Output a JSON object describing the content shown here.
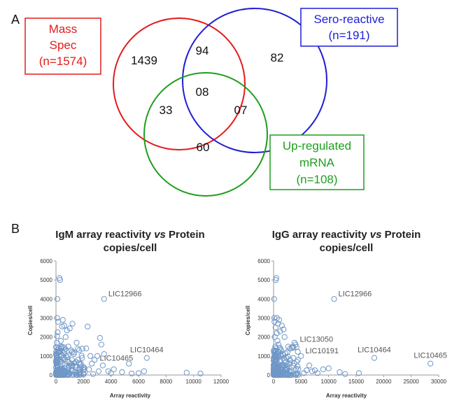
{
  "panel_a": {
    "label": "A",
    "sets": [
      {
        "name_lines": [
          "Mass",
          "Spec",
          "(n=1574)"
        ],
        "color": "#e31b1b"
      },
      {
        "name_lines": [
          "Sero-reactive",
          "(n=191)"
        ],
        "color": "#1f1fd6"
      },
      {
        "name_lines": [
          "Up-regulated",
          "mRNA",
          "(n=108)"
        ],
        "color": "#1f9e1f"
      }
    ],
    "regions": {
      "mass_only": "1439",
      "mass_sero": "94",
      "sero_only": "82",
      "all_three": "08",
      "mass_mrna": "33",
      "sero_mrna": "07",
      "mrna_only": "60"
    }
  },
  "panel_b": {
    "label": "B",
    "charts": [
      {
        "title_parts": [
          "IgM array reactivity ",
          "vs",
          " Protein"
        ],
        "title_line2": "copies/cell",
        "xlabel": "Array reactivity",
        "ylabel": "Copies/cell",
        "x_ticks": [
          "0",
          "2000",
          "4000",
          "6000",
          "8000",
          "10000",
          "12000"
        ],
        "y_ticks": [
          "0",
          "1000",
          "2000",
          "3000",
          "4000",
          "5000",
          "6000"
        ],
        "annotations": [
          "LIC12966",
          "LIC10464",
          "LIC10465"
        ]
      },
      {
        "title_parts": [
          "IgG array reactivity ",
          "vs",
          " Protein"
        ],
        "title_line2": "copies/cell",
        "xlabel": "Array reactivity",
        "ylabel": "Copies/cell",
        "x_ticks": [
          "0",
          "5000",
          "10000",
          "15000",
          "20000",
          "25000",
          "30000"
        ],
        "y_ticks": [
          "0",
          "1000",
          "2000",
          "3000",
          "4000",
          "5000",
          "6000"
        ],
        "annotations": [
          "LIC12966",
          "LIC13050",
          "LIC10191",
          "LIC10464",
          "LIC10465"
        ]
      }
    ]
  },
  "chart_data": [
    {
      "type": "scatter",
      "title": "IgM array reactivity vs Protein copies/cell",
      "xlabel": "Array reactivity",
      "ylabel": "Copies/cell",
      "xlim": [
        0,
        12000
      ],
      "ylim": [
        0,
        6000
      ],
      "marker_color": "#6f97c7",
      "points": [
        [
          3500,
          4000
        ],
        [
          6600,
          900
        ],
        [
          5300,
          600
        ],
        [
          9500,
          120
        ],
        [
          10500,
          80
        ],
        [
          6400,
          200
        ],
        [
          6000,
          100
        ],
        [
          5500,
          80
        ],
        [
          4800,
          150
        ],
        [
          4200,
          300
        ],
        [
          3200,
          1950
        ],
        [
          3300,
          1600
        ],
        [
          2300,
          2550
        ],
        [
          2200,
          1400
        ],
        [
          3500,
          1100
        ],
        [
          3000,
          1000
        ],
        [
          2800,
          800
        ],
        [
          2600,
          600
        ],
        [
          2400,
          300
        ],
        [
          3800,
          200
        ],
        [
          4000,
          100
        ],
        [
          3400,
          500
        ],
        [
          2500,
          1000
        ],
        [
          1900,
          900
        ],
        [
          1500,
          1700
        ],
        [
          1200,
          2700
        ],
        [
          1000,
          2450
        ],
        [
          800,
          2350
        ],
        [
          600,
          2600
        ],
        [
          500,
          2900
        ],
        [
          300,
          5000
        ],
        [
          250,
          5100
        ],
        [
          100,
          4000
        ],
        [
          80,
          2050
        ],
        [
          120,
          2250
        ],
        [
          450,
          2550
        ],
        [
          150,
          2800
        ],
        [
          700,
          2000
        ],
        [
          900,
          1500
        ],
        [
          1100,
          1300
        ],
        [
          1300,
          1100
        ],
        [
          1600,
          800
        ],
        [
          1800,
          600
        ],
        [
          2000,
          400
        ],
        [
          400,
          1500
        ],
        [
          200,
          1200
        ],
        [
          600,
          1300
        ],
        [
          350,
          1800
        ],
        [
          750,
          1000
        ],
        [
          1400,
          500
        ],
        [
          1700,
          250
        ],
        [
          2100,
          150
        ],
        [
          2700,
          50
        ],
        [
          3100,
          200
        ],
        [
          850,
          700
        ],
        [
          950,
          400
        ],
        [
          650,
          600
        ],
        [
          500,
          900
        ],
        [
          250,
          700
        ],
        [
          100,
          400
        ],
        [
          50,
          200
        ],
        [
          30,
          1000
        ],
        [
          60,
          1700
        ],
        [
          80,
          3000
        ],
        [
          200,
          300
        ],
        [
          400,
          200
        ],
        [
          700,
          150
        ],
        [
          1000,
          100
        ],
        [
          1200,
          250
        ],
        [
          1500,
          100
        ]
      ],
      "annotations": [
        {
          "text": "LIC12966",
          "x": 3500,
          "y": 4000
        },
        {
          "text": "LIC10464",
          "x": 6600,
          "y": 900
        },
        {
          "text": "LIC10465",
          "x": 5300,
          "y": 600
        }
      ]
    },
    {
      "type": "scatter",
      "title": "IgG array reactivity vs Protein copies/cell",
      "xlabel": "Array reactivity",
      "ylabel": "Copies/cell",
      "xlim": [
        0,
        30000
      ],
      "ylim": [
        0,
        6000
      ],
      "marker_color": "#6f97c7",
      "points": [
        [
          11000,
          4000
        ],
        [
          18300,
          900
        ],
        [
          28500,
          600
        ],
        [
          4000,
          1600
        ],
        [
          3800,
          1700
        ],
        [
          3500,
          1500
        ],
        [
          5000,
          1000
        ],
        [
          15500,
          100
        ],
        [
          9000,
          300
        ],
        [
          10000,
          350
        ],
        [
          7000,
          200
        ],
        [
          8000,
          100
        ],
        [
          6000,
          250
        ],
        [
          12000,
          150
        ],
        [
          13000,
          50
        ],
        [
          3000,
          800
        ],
        [
          2500,
          1200
        ],
        [
          2000,
          2000
        ],
        [
          1800,
          2400
        ],
        [
          1500,
          2600
        ],
        [
          1200,
          2300
        ],
        [
          1000,
          2900
        ],
        [
          800,
          2700
        ],
        [
          600,
          3000
        ],
        [
          400,
          5000
        ],
        [
          500,
          5100
        ],
        [
          100,
          4000
        ],
        [
          200,
          2000
        ],
        [
          300,
          1500
        ],
        [
          700,
          1800
        ],
        [
          900,
          1000
        ],
        [
          1100,
          700
        ],
        [
          1300,
          500
        ],
        [
          1600,
          400
        ],
        [
          2200,
          300
        ],
        [
          2800,
          200
        ],
        [
          3200,
          150
        ],
        [
          4500,
          300
        ],
        [
          5500,
          100
        ],
        [
          6500,
          500
        ],
        [
          7500,
          250
        ],
        [
          4200,
          700
        ],
        [
          3600,
          900
        ],
        [
          2600,
          600
        ],
        [
          1900,
          900
        ],
        [
          1400,
          1300
        ],
        [
          900,
          1600
        ],
        [
          600,
          2200
        ],
        [
          350,
          2500
        ],
        [
          150,
          2800
        ],
        [
          250,
          1000
        ],
        [
          450,
          700
        ],
        [
          650,
          400
        ],
        [
          850,
          300
        ],
        [
          1050,
          200
        ],
        [
          1250,
          100
        ],
        [
          50,
          500
        ],
        [
          80,
          1200
        ],
        [
          120,
          3000
        ],
        [
          60,
          200
        ]
      ],
      "annotations": [
        {
          "text": "LIC12966",
          "x": 11000,
          "y": 4000
        },
        {
          "text": "LIC13050",
          "x": 4000,
          "y": 1600
        },
        {
          "text": "LIC10191",
          "x": 5000,
          "y": 1000
        },
        {
          "text": "LIC10464",
          "x": 18300,
          "y": 900
        },
        {
          "text": "LIC10465",
          "x": 28500,
          "y": 600
        }
      ]
    }
  ]
}
